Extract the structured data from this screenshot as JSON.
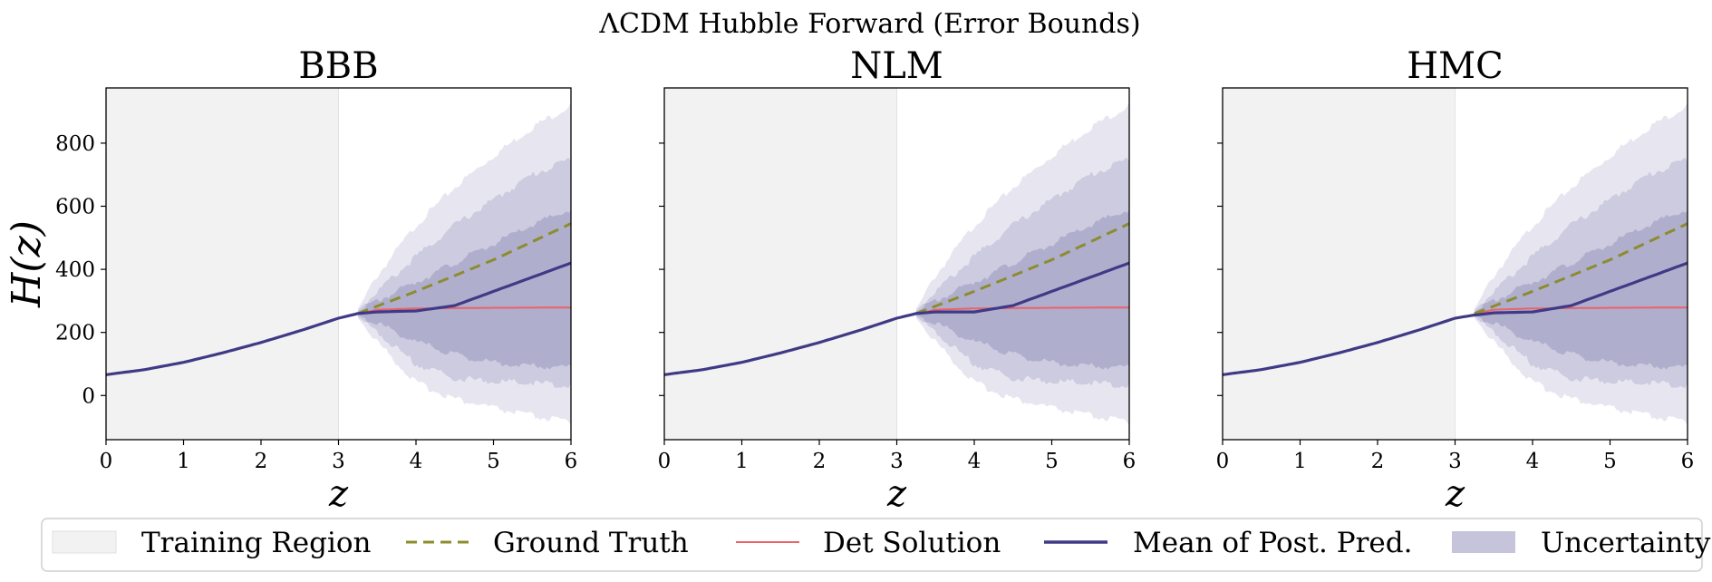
{
  "figure": {
    "suptitle": "ΛCDM Hubble Forward (Error Bounds)",
    "colors": {
      "training": "#f2f2f2",
      "ground_truth": "#8c8c2f",
      "det_solution": "#e8636a",
      "mean": "#3f3a86",
      "uncertainty": "#3f3a86"
    }
  },
  "legend": {
    "placement": "bottom",
    "items": [
      {
        "kind": "patch",
        "label": "Training Region"
      },
      {
        "kind": "dashed",
        "label": "Ground Truth"
      },
      {
        "kind": "line-thin",
        "label": "Det Solution"
      },
      {
        "kind": "line-thick",
        "label": "Mean of Post. Pred."
      },
      {
        "kind": "patch-unc",
        "label": "Uncertainty"
      }
    ]
  },
  "chart_data": [
    {
      "type": "line",
      "title": "BBB",
      "xlabel": "z",
      "ylabel": "H(z)",
      "xlim": [
        0,
        6
      ],
      "ylim": [
        -140,
        975
      ],
      "xticks": [
        "0",
        "1",
        "2",
        "3",
        "4",
        "5",
        "6"
      ],
      "yticks": [
        "0",
        "200",
        "400",
        "600",
        "800"
      ],
      "training_region": [
        0,
        3
      ],
      "series": [
        {
          "name": "Ground Truth",
          "x": [
            3.25,
            4,
            5,
            6
          ],
          "y": [
            260,
            330,
            430,
            545
          ]
        },
        {
          "name": "Det Solution",
          "x": [
            3.25,
            3.5,
            4,
            5,
            6
          ],
          "y": [
            258,
            272,
            276,
            278,
            279
          ]
        },
        {
          "name": "Mean of Post. Pred.",
          "x": [
            0,
            0.5,
            1,
            1.5,
            2,
            2.5,
            3,
            3.25,
            3.5,
            4,
            4.5,
            5,
            5.5,
            6
          ],
          "y": [
            66,
            82,
            105,
            135,
            168,
            205,
            245,
            260,
            265,
            268,
            285,
            330,
            375,
            420
          ]
        },
        {
          "name": "Uncertainty",
          "x": [
            3.25,
            3.5,
            4,
            4.5,
            5,
            5.5,
            6
          ],
          "bands": [
            {
              "lower": [
                255,
                230,
                170,
                130,
                105,
                95,
                90
              ],
              "upper": [
                265,
                300,
                360,
                420,
                480,
                540,
                590
              ]
            },
            {
              "lower": [
                250,
                200,
                100,
                55,
                45,
                40,
                30
              ],
              "upper": [
                270,
                330,
                440,
                540,
                620,
                700,
                750
              ]
            },
            {
              "lower": [
                245,
                170,
                40,
                -10,
                -40,
                -65,
                -85
              ],
              "upper": [
                275,
                380,
                540,
                660,
                760,
                850,
                920
              ]
            }
          ]
        }
      ]
    },
    {
      "type": "line",
      "title": "NLM",
      "xlabel": "z",
      "ylabel": "",
      "xlim": [
        0,
        6
      ],
      "ylim": [
        -140,
        975
      ],
      "xticks": [
        "0",
        "1",
        "2",
        "3",
        "4",
        "5",
        "6"
      ],
      "yticks": [
        "0",
        "200",
        "400",
        "600",
        "800"
      ],
      "training_region": [
        0,
        3
      ],
      "series": [
        {
          "name": "Ground Truth",
          "x": [
            3.25,
            4,
            5,
            6
          ],
          "y": [
            260,
            330,
            430,
            545
          ]
        },
        {
          "name": "Det Solution",
          "x": [
            3.25,
            3.5,
            4,
            5,
            6
          ],
          "y": [
            258,
            272,
            276,
            278,
            279
          ]
        },
        {
          "name": "Mean of Post. Pred.",
          "x": [
            0,
            0.5,
            1,
            1.5,
            2,
            2.5,
            3,
            3.25,
            3.5,
            4,
            4.5,
            5,
            5.5,
            6
          ],
          "y": [
            66,
            82,
            105,
            135,
            168,
            205,
            245,
            260,
            265,
            265,
            285,
            330,
            375,
            420
          ]
        },
        {
          "name": "Uncertainty",
          "x": [
            3.25,
            3.5,
            4,
            4.5,
            5,
            5.5,
            6
          ],
          "bands": [
            {
              "lower": [
                255,
                230,
                170,
                130,
                105,
                95,
                90
              ],
              "upper": [
                265,
                300,
                360,
                420,
                480,
                540,
                590
              ]
            },
            {
              "lower": [
                250,
                200,
                100,
                55,
                45,
                40,
                30
              ],
              "upper": [
                270,
                330,
                440,
                540,
                620,
                700,
                750
              ]
            },
            {
              "lower": [
                245,
                170,
                40,
                -10,
                -40,
                -65,
                -85
              ],
              "upper": [
                275,
                380,
                540,
                660,
                760,
                850,
                920
              ]
            }
          ]
        }
      ]
    },
    {
      "type": "line",
      "title": "HMC",
      "xlabel": "z",
      "ylabel": "",
      "xlim": [
        0,
        6
      ],
      "ylim": [
        -140,
        975
      ],
      "xticks": [
        "0",
        "1",
        "2",
        "3",
        "4",
        "5",
        "6"
      ],
      "yticks": [
        "0",
        "200",
        "400",
        "600",
        "800"
      ],
      "training_region": [
        0,
        3
      ],
      "series": [
        {
          "name": "Ground Truth",
          "x": [
            3.25,
            4,
            5,
            6
          ],
          "y": [
            260,
            330,
            430,
            545
          ]
        },
        {
          "name": "Det Solution",
          "x": [
            3.25,
            3.5,
            4,
            5,
            6
          ],
          "y": [
            258,
            272,
            276,
            278,
            279
          ]
        },
        {
          "name": "Mean of Post. Pred.",
          "x": [
            0,
            0.5,
            1,
            1.5,
            2,
            2.5,
            3,
            3.25,
            3.5,
            4,
            4.5,
            5,
            5.5,
            6
          ],
          "y": [
            66,
            82,
            105,
            135,
            168,
            205,
            245,
            255,
            262,
            265,
            285,
            330,
            375,
            420
          ]
        },
        {
          "name": "Uncertainty",
          "x": [
            3.25,
            3.5,
            4,
            4.5,
            5,
            5.5,
            6
          ],
          "bands": [
            {
              "lower": [
                255,
                230,
                170,
                130,
                105,
                95,
                90
              ],
              "upper": [
                265,
                300,
                360,
                420,
                480,
                540,
                590
              ]
            },
            {
              "lower": [
                250,
                200,
                100,
                55,
                45,
                40,
                30
              ],
              "upper": [
                270,
                330,
                440,
                540,
                620,
                700,
                750
              ]
            },
            {
              "lower": [
                245,
                170,
                40,
                -10,
                -40,
                -65,
                -85
              ],
              "upper": [
                275,
                380,
                540,
                660,
                760,
                850,
                920
              ]
            }
          ]
        }
      ]
    }
  ]
}
